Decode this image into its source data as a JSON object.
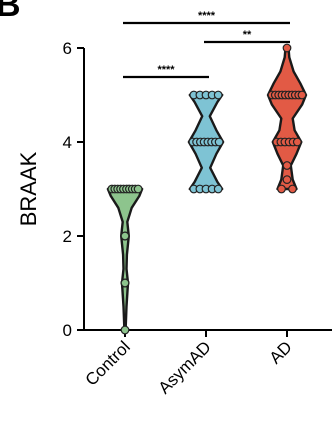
{
  "panel_label": "B",
  "chart_data": {
    "type": "violin",
    "ylabel": "BRAAK",
    "ylim": [
      0,
      6
    ],
    "yticks": [
      "0",
      "2",
      "4",
      "6"
    ],
    "categories": [
      "Control",
      "AsymAD",
      "AD"
    ],
    "colors": {
      "Control": "#8dc48d",
      "AsymAD": "#7ec3d4",
      "AD": "#e25a45",
      "outline": "#1a1a1a"
    },
    "series": [
      {
        "name": "Control",
        "points": [
          0,
          1,
          1,
          1,
          2,
          2,
          2,
          2,
          3,
          3,
          3,
          3,
          3,
          3,
          3,
          3,
          3,
          3
        ],
        "density": [
          [
            0,
            0.03
          ],
          [
            0.5,
            0.08
          ],
          [
            1,
            0.16
          ],
          [
            1.3,
            0.08
          ],
          [
            1.6,
            0.1
          ],
          [
            2,
            0.2
          ],
          [
            2.3,
            0.12
          ],
          [
            2.6,
            0.35
          ],
          [
            2.85,
            0.75
          ],
          [
            3,
            0.9
          ]
        ]
      },
      {
        "name": "AsymAD",
        "points": [
          3,
          3,
          3,
          3,
          3,
          4,
          4,
          4,
          4,
          4,
          4,
          4,
          4,
          5,
          5,
          5,
          5,
          5
        ],
        "density": [
          [
            3,
            0.85
          ],
          [
            3.15,
            0.6
          ],
          [
            3.45,
            0.22
          ],
          [
            3.75,
            0.55
          ],
          [
            4,
            0.9
          ],
          [
            4.25,
            0.55
          ],
          [
            4.55,
            0.2
          ],
          [
            4.85,
            0.6
          ],
          [
            5,
            0.85
          ]
        ]
      },
      {
        "name": "AD",
        "points": [
          3,
          3,
          3.2,
          3.5,
          4,
          4,
          4,
          4,
          4,
          4,
          5,
          5,
          5,
          5,
          5,
          5,
          5,
          5,
          5,
          5,
          6
        ],
        "density": [
          [
            3,
            0.5
          ],
          [
            3.2,
            0.3
          ],
          [
            3.5,
            0.2
          ],
          [
            3.75,
            0.5
          ],
          [
            4,
            0.75
          ],
          [
            4.25,
            0.4
          ],
          [
            4.5,
            0.3
          ],
          [
            4.8,
            0.8
          ],
          [
            5,
            1.0
          ],
          [
            5.25,
            0.7
          ],
          [
            5.5,
            0.35
          ],
          [
            5.8,
            0.12
          ],
          [
            6,
            0.08
          ]
        ]
      }
    ],
    "significance": [
      {
        "from": "Control",
        "to": "AsymAD",
        "label": "****"
      },
      {
        "from": "Control",
        "to": "AD",
        "label": "****"
      },
      {
        "from": "AsymAD",
        "to": "AD",
        "label": "**"
      }
    ]
  }
}
